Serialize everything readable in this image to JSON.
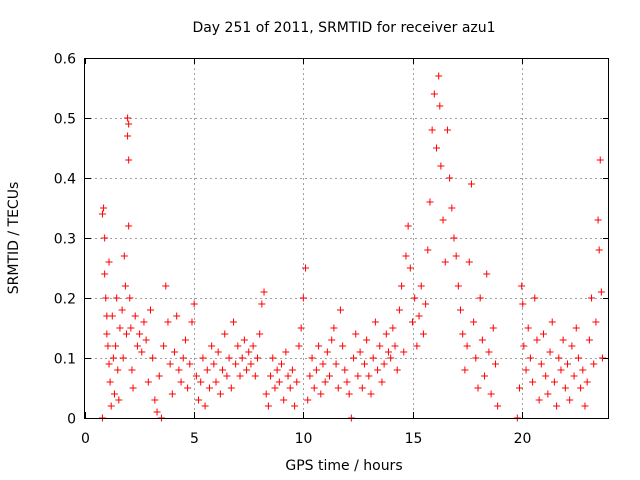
{
  "chart_data": {
    "type": "scatter",
    "title": "Day 251 of 2011, SRMTID for receiver azu1",
    "xlabel": "GPS time / hours",
    "ylabel": "SRMTID / TECUs",
    "xlim": [
      0,
      24
    ],
    "ylim": [
      0,
      0.6
    ],
    "xticks": [
      0,
      5,
      10,
      15,
      20
    ],
    "xtick_labels": [
      "0",
      "5",
      "10",
      "15",
      "20"
    ],
    "yticks": [
      0,
      0.1,
      0.2,
      0.3,
      0.4,
      0.5,
      0.6
    ],
    "ytick_labels": [
      "0",
      "0.1",
      "0.2",
      "0.3",
      "0.4",
      "0.5",
      "0.6"
    ],
    "grid": true,
    "marker": "+",
    "color": "#ff0000",
    "series": [
      {
        "name": "SRMTID",
        "points": [
          [
            0.8,
            0.0
          ],
          [
            0.8,
            0.34
          ],
          [
            0.85,
            0.35
          ],
          [
            0.9,
            0.3
          ],
          [
            0.9,
            0.24
          ],
          [
            0.95,
            0.2
          ],
          [
            1.0,
            0.17
          ],
          [
            1.0,
            0.14
          ],
          [
            1.05,
            0.12
          ],
          [
            1.1,
            0.26
          ],
          [
            1.1,
            0.09
          ],
          [
            1.15,
            0.06
          ],
          [
            1.2,
            0.02
          ],
          [
            1.25,
            0.17
          ],
          [
            1.3,
            0.1
          ],
          [
            1.35,
            0.04
          ],
          [
            1.4,
            0.12
          ],
          [
            1.45,
            0.2
          ],
          [
            1.5,
            0.08
          ],
          [
            1.55,
            0.03
          ],
          [
            1.6,
            0.15
          ],
          [
            1.7,
            0.18
          ],
          [
            1.75,
            0.1
          ],
          [
            1.8,
            0.27
          ],
          [
            1.85,
            0.22
          ],
          [
            1.9,
            0.14
          ],
          [
            1.95,
            0.5
          ],
          [
            1.95,
            0.47
          ],
          [
            2.0,
            0.49
          ],
          [
            2.0,
            0.43
          ],
          [
            2.0,
            0.32
          ],
          [
            2.05,
            0.2
          ],
          [
            2.1,
            0.15
          ],
          [
            2.15,
            0.08
          ],
          [
            2.2,
            0.05
          ],
          [
            2.3,
            0.17
          ],
          [
            2.4,
            0.12
          ],
          [
            2.5,
            0.14
          ],
          [
            2.6,
            0.11
          ],
          [
            2.7,
            0.16
          ],
          [
            2.8,
            0.13
          ],
          [
            2.9,
            0.06
          ],
          [
            3.0,
            0.18
          ],
          [
            3.1,
            0.1
          ],
          [
            3.2,
            0.03
          ],
          [
            3.3,
            0.01
          ],
          [
            3.4,
            0.07
          ],
          [
            3.5,
            0.0
          ],
          [
            3.6,
            0.12
          ],
          [
            3.7,
            0.22
          ],
          [
            3.8,
            0.16
          ],
          [
            3.9,
            0.09
          ],
          [
            4.0,
            0.04
          ],
          [
            4.1,
            0.11
          ],
          [
            4.2,
            0.17
          ],
          [
            4.3,
            0.08
          ],
          [
            4.4,
            0.06
          ],
          [
            4.5,
            0.1
          ],
          [
            4.6,
            0.13
          ],
          [
            4.7,
            0.05
          ],
          [
            4.8,
            0.09
          ],
          [
            4.9,
            0.16
          ],
          [
            5.0,
            0.19
          ],
          [
            5.1,
            0.07
          ],
          [
            5.2,
            0.03
          ],
          [
            5.3,
            0.06
          ],
          [
            5.4,
            0.1
          ],
          [
            5.5,
            0.02
          ],
          [
            5.6,
            0.08
          ],
          [
            5.7,
            0.05
          ],
          [
            5.8,
            0.12
          ],
          [
            5.9,
            0.09
          ],
          [
            6.0,
            0.06
          ],
          [
            6.1,
            0.11
          ],
          [
            6.2,
            0.04
          ],
          [
            6.3,
            0.08
          ],
          [
            6.4,
            0.14
          ],
          [
            6.5,
            0.07
          ],
          [
            6.6,
            0.1
          ],
          [
            6.7,
            0.05
          ],
          [
            6.8,
            0.16
          ],
          [
            6.9,
            0.09
          ],
          [
            7.0,
            0.12
          ],
          [
            7.1,
            0.07
          ],
          [
            7.2,
            0.1
          ],
          [
            7.3,
            0.13
          ],
          [
            7.4,
            0.08
          ],
          [
            7.5,
            0.11
          ],
          [
            7.6,
            0.09
          ],
          [
            7.7,
            0.12
          ],
          [
            7.8,
            0.07
          ],
          [
            7.9,
            0.1
          ],
          [
            8.0,
            0.14
          ],
          [
            8.1,
            0.19
          ],
          [
            8.2,
            0.21
          ],
          [
            8.3,
            0.04
          ],
          [
            8.4,
            0.02
          ],
          [
            8.5,
            0.07
          ],
          [
            8.6,
            0.1
          ],
          [
            8.7,
            0.05
          ],
          [
            8.8,
            0.08
          ],
          [
            8.9,
            0.06
          ],
          [
            9.0,
            0.09
          ],
          [
            9.1,
            0.03
          ],
          [
            9.2,
            0.11
          ],
          [
            9.3,
            0.07
          ],
          [
            9.4,
            0.05
          ],
          [
            9.5,
            0.08
          ],
          [
            9.6,
            0.02
          ],
          [
            9.7,
            0.06
          ],
          [
            9.8,
            0.12
          ],
          [
            9.9,
            0.15
          ],
          [
            10.0,
            0.2
          ],
          [
            10.1,
            0.25
          ],
          [
            10.2,
            0.03
          ],
          [
            10.3,
            0.07
          ],
          [
            10.4,
            0.1
          ],
          [
            10.5,
            0.05
          ],
          [
            10.6,
            0.08
          ],
          [
            10.7,
            0.12
          ],
          [
            10.8,
            0.04
          ],
          [
            10.9,
            0.09
          ],
          [
            11.0,
            0.06
          ],
          [
            11.1,
            0.11
          ],
          [
            11.2,
            0.07
          ],
          [
            11.3,
            0.13
          ],
          [
            11.4,
            0.15
          ],
          [
            11.5,
            0.09
          ],
          [
            11.6,
            0.05
          ],
          [
            11.7,
            0.18
          ],
          [
            11.8,
            0.12
          ],
          [
            11.9,
            0.08
          ],
          [
            12.0,
            0.06
          ],
          [
            12.1,
            0.04
          ],
          [
            12.2,
            0.0
          ],
          [
            12.3,
            0.1
          ],
          [
            12.4,
            0.14
          ],
          [
            12.5,
            0.07
          ],
          [
            12.6,
            0.11
          ],
          [
            12.7,
            0.05
          ],
          [
            12.8,
            0.09
          ],
          [
            12.9,
            0.13
          ],
          [
            13.0,
            0.07
          ],
          [
            13.1,
            0.04
          ],
          [
            13.2,
            0.1
          ],
          [
            13.3,
            0.16
          ],
          [
            13.4,
            0.08
          ],
          [
            13.5,
            0.12
          ],
          [
            13.6,
            0.06
          ],
          [
            13.7,
            0.09
          ],
          [
            13.8,
            0.14
          ],
          [
            13.9,
            0.11
          ],
          [
            14.0,
            0.1
          ],
          [
            14.1,
            0.15
          ],
          [
            14.2,
            0.12
          ],
          [
            14.3,
            0.08
          ],
          [
            14.4,
            0.18
          ],
          [
            14.5,
            0.22
          ],
          [
            14.6,
            0.11
          ],
          [
            14.7,
            0.27
          ],
          [
            14.8,
            0.32
          ],
          [
            14.9,
            0.25
          ],
          [
            15.0,
            0.16
          ],
          [
            15.1,
            0.2
          ],
          [
            15.2,
            0.12
          ],
          [
            15.3,
            0.17
          ],
          [
            15.4,
            0.22
          ],
          [
            15.5,
            0.14
          ],
          [
            15.6,
            0.19
          ],
          [
            15.7,
            0.28
          ],
          [
            15.8,
            0.36
          ],
          [
            15.9,
            0.48
          ],
          [
            16.0,
            0.54
          ],
          [
            16.1,
            0.45
          ],
          [
            16.2,
            0.57
          ],
          [
            16.25,
            0.52
          ],
          [
            16.3,
            0.42
          ],
          [
            16.4,
            0.33
          ],
          [
            16.5,
            0.26
          ],
          [
            16.6,
            0.48
          ],
          [
            16.7,
            0.4
          ],
          [
            16.8,
            0.35
          ],
          [
            16.9,
            0.3
          ],
          [
            17.0,
            0.27
          ],
          [
            17.1,
            0.22
          ],
          [
            17.2,
            0.18
          ],
          [
            17.3,
            0.14
          ],
          [
            17.4,
            0.08
          ],
          [
            17.5,
            0.12
          ],
          [
            17.6,
            0.26
          ],
          [
            17.7,
            0.39
          ],
          [
            17.8,
            0.16
          ],
          [
            17.9,
            0.1
          ],
          [
            18.0,
            0.05
          ],
          [
            18.1,
            0.2
          ],
          [
            18.2,
            0.13
          ],
          [
            18.3,
            0.07
          ],
          [
            18.4,
            0.24
          ],
          [
            18.5,
            0.11
          ],
          [
            18.6,
            0.04
          ],
          [
            18.7,
            0.15
          ],
          [
            18.8,
            0.09
          ],
          [
            18.9,
            0.02
          ],
          [
            19.8,
            0.0
          ],
          [
            19.9,
            0.05
          ],
          [
            20.0,
            0.22
          ],
          [
            20.05,
            0.19
          ],
          [
            20.1,
            0.12
          ],
          [
            20.2,
            0.08
          ],
          [
            20.3,
            0.15
          ],
          [
            20.4,
            0.1
          ],
          [
            20.5,
            0.06
          ],
          [
            20.6,
            0.2
          ],
          [
            20.7,
            0.13
          ],
          [
            20.8,
            0.03
          ],
          [
            20.9,
            0.09
          ],
          [
            21.0,
            0.14
          ],
          [
            21.1,
            0.07
          ],
          [
            21.2,
            0.04
          ],
          [
            21.3,
            0.11
          ],
          [
            21.4,
            0.16
          ],
          [
            21.5,
            0.06
          ],
          [
            21.6,
            0.02
          ],
          [
            21.7,
            0.1
          ],
          [
            21.8,
            0.08
          ],
          [
            21.9,
            0.13
          ],
          [
            22.0,
            0.05
          ],
          [
            22.1,
            0.09
          ],
          [
            22.2,
            0.03
          ],
          [
            22.3,
            0.12
          ],
          [
            22.4,
            0.07
          ],
          [
            22.5,
            0.15
          ],
          [
            22.6,
            0.1
          ],
          [
            22.7,
            0.05
          ],
          [
            22.8,
            0.08
          ],
          [
            22.9,
            0.02
          ],
          [
            23.0,
            0.06
          ],
          [
            23.1,
            0.13
          ],
          [
            23.2,
            0.2
          ],
          [
            23.3,
            0.09
          ],
          [
            23.4,
            0.16
          ],
          [
            23.5,
            0.33
          ],
          [
            23.55,
            0.28
          ],
          [
            23.6,
            0.43
          ],
          [
            23.65,
            0.21
          ],
          [
            23.7,
            0.1
          ]
        ]
      }
    ]
  }
}
